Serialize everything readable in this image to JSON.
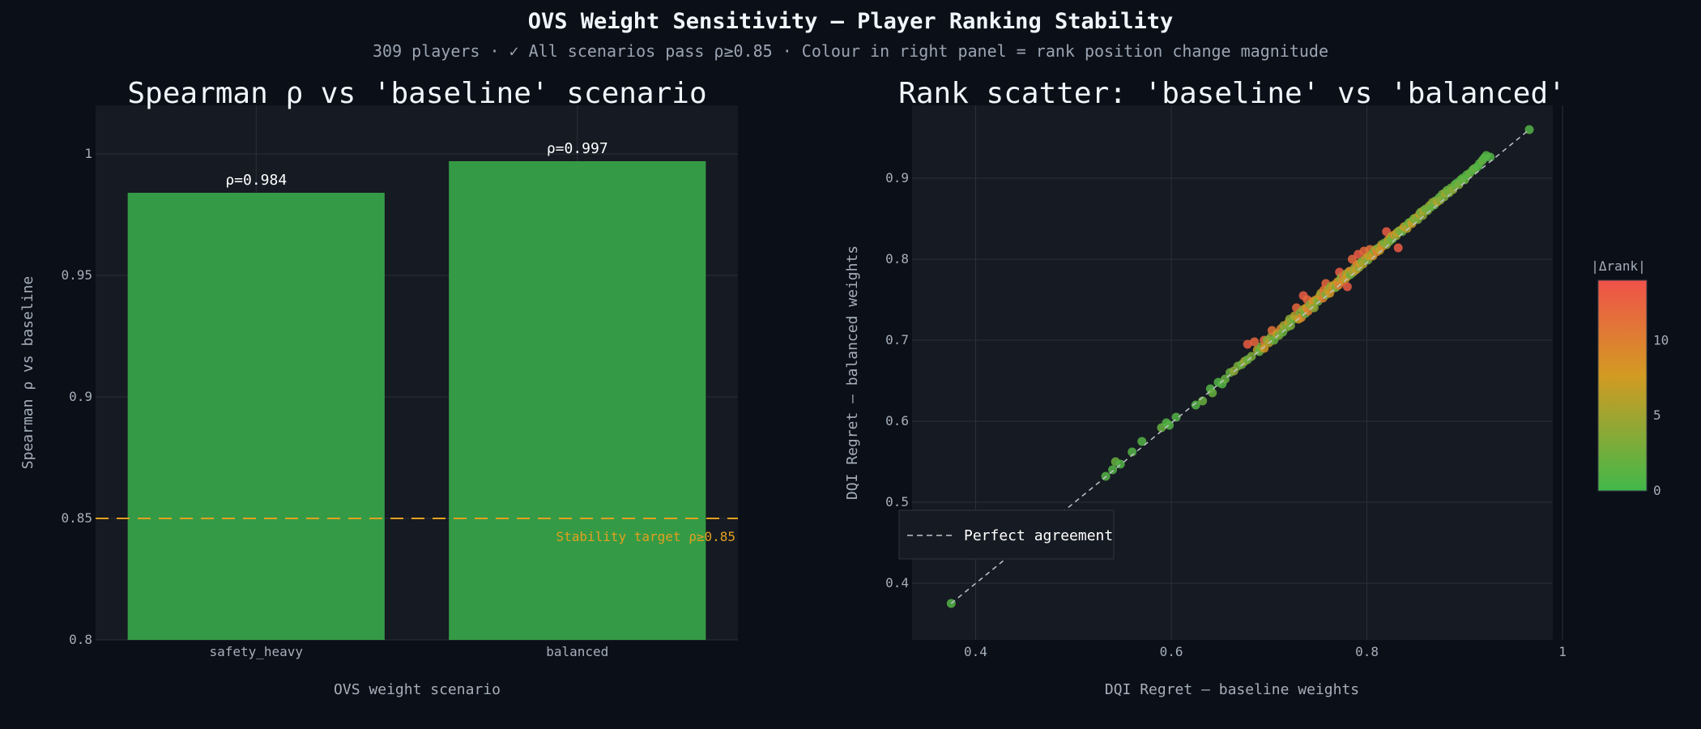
{
  "figure": {
    "title": "OVS Weight Sensitivity — Player Ranking Stability",
    "subtitle": "309 players  ·  ✓ All scenarios pass ρ≥0.85  ·  Colour in right panel = rank position change magnitude"
  },
  "colors": {
    "background": "#0b0f17",
    "panel": "#161a22",
    "bar": "#359a46",
    "target": "#e3a01e",
    "diagonal": "#c0c4ca",
    "scale_low": "#41b84a",
    "scale_mid": "#d39a22",
    "scale_high": "#f0524a"
  },
  "chart_data": [
    {
      "type": "bar",
      "title": "Spearman ρ vs 'baseline' scenario",
      "xlabel": "OVS weight scenario",
      "ylabel": "Spearman ρ vs baseline",
      "categories": [
        "safety_heavy",
        "balanced"
      ],
      "values": [
        0.984,
        0.997
      ],
      "bar_labels": [
        "ρ=0.984",
        "ρ=0.997"
      ],
      "ylim": [
        0.8,
        1.02
      ],
      "yticks": [
        0.8,
        0.85,
        0.9,
        0.95,
        1
      ],
      "ytick_labels": [
        "0.8",
        "0.85",
        "0.9",
        "0.95",
        "1"
      ],
      "threshold": {
        "value": 0.85,
        "label": "Stability target ρ≥0.85"
      },
      "grid": true
    },
    {
      "type": "scatter",
      "title": "Rank scatter: 'baseline' vs 'balanced'",
      "xlabel": "DQI Regret — baseline weights",
      "ylabel": "DQI Regret — balanced weights",
      "xlim": [
        0.335,
        0.99
      ],
      "ylim": [
        0.33,
        0.99
      ],
      "xticks": [
        0.4,
        0.6,
        0.8,
        1
      ],
      "xtick_labels": [
        "0.4",
        "0.6",
        "0.8",
        "1"
      ],
      "yticks": [
        0.4,
        0.5,
        0.6,
        0.7,
        0.8,
        0.9
      ],
      "ytick_labels": [
        "0.4",
        "0.5",
        "0.6",
        "0.7",
        "0.8",
        "0.9"
      ],
      "reference_line": {
        "label": "Perfect agreement",
        "from": [
          0.375,
          0.375
        ],
        "to": [
          0.966,
          0.96
        ]
      },
      "legend_position": "bottom-left",
      "colorbar": {
        "title": "|Δrank|",
        "range": [
          0,
          14
        ],
        "ticks": [
          0,
          5,
          10
        ],
        "tick_labels": [
          "0",
          "5",
          "10"
        ]
      },
      "grid": true,
      "points": [
        {
          "x": 0.375,
          "y": 0.375,
          "d": 1
        },
        {
          "x": 0.48,
          "y": 0.478,
          "d": 1
        },
        {
          "x": 0.533,
          "y": 0.532,
          "d": 1
        },
        {
          "x": 0.54,
          "y": 0.54,
          "d": 1
        },
        {
          "x": 0.543,
          "y": 0.55,
          "d": 2
        },
        {
          "x": 0.548,
          "y": 0.547,
          "d": 1
        },
        {
          "x": 0.56,
          "y": 0.562,
          "d": 1
        },
        {
          "x": 0.57,
          "y": 0.575,
          "d": 1
        },
        {
          "x": 0.59,
          "y": 0.592,
          "d": 2
        },
        {
          "x": 0.595,
          "y": 0.598,
          "d": 1
        },
        {
          "x": 0.598,
          "y": 0.595,
          "d": 1
        },
        {
          "x": 0.605,
          "y": 0.605,
          "d": 1
        },
        {
          "x": 0.625,
          "y": 0.62,
          "d": 1
        },
        {
          "x": 0.632,
          "y": 0.625,
          "d": 2
        },
        {
          "x": 0.64,
          "y": 0.64,
          "d": 1
        },
        {
          "x": 0.642,
          "y": 0.635,
          "d": 2
        },
        {
          "x": 0.648,
          "y": 0.648,
          "d": 1
        },
        {
          "x": 0.652,
          "y": 0.646,
          "d": 1
        },
        {
          "x": 0.655,
          "y": 0.652,
          "d": 2
        },
        {
          "x": 0.66,
          "y": 0.66,
          "d": 2
        },
        {
          "x": 0.664,
          "y": 0.662,
          "d": 4
        },
        {
          "x": 0.668,
          "y": 0.668,
          "d": 3
        },
        {
          "x": 0.672,
          "y": 0.67,
          "d": 2
        },
        {
          "x": 0.675,
          "y": 0.674,
          "d": 5
        },
        {
          "x": 0.678,
          "y": 0.676,
          "d": 2
        },
        {
          "x": 0.678,
          "y": 0.695,
          "d": 13
        },
        {
          "x": 0.682,
          "y": 0.68,
          "d": 3
        },
        {
          "x": 0.685,
          "y": 0.698,
          "d": 12
        },
        {
          "x": 0.688,
          "y": 0.688,
          "d": 6
        },
        {
          "x": 0.69,
          "y": 0.686,
          "d": 2
        },
        {
          "x": 0.692,
          "y": 0.692,
          "d": 3
        },
        {
          "x": 0.695,
          "y": 0.7,
          "d": 12
        },
        {
          "x": 0.695,
          "y": 0.69,
          "d": 8
        },
        {
          "x": 0.698,
          "y": 0.7,
          "d": 3
        },
        {
          "x": 0.7,
          "y": 0.697,
          "d": 6
        },
        {
          "x": 0.702,
          "y": 0.704,
          "d": 4
        },
        {
          "x": 0.703,
          "y": 0.712,
          "d": 11
        },
        {
          "x": 0.705,
          "y": 0.7,
          "d": 2
        },
        {
          "x": 0.708,
          "y": 0.708,
          "d": 7
        },
        {
          "x": 0.71,
          "y": 0.706,
          "d": 3
        },
        {
          "x": 0.712,
          "y": 0.714,
          "d": 9
        },
        {
          "x": 0.714,
          "y": 0.71,
          "d": 2
        },
        {
          "x": 0.715,
          "y": 0.718,
          "d": 5
        },
        {
          "x": 0.718,
          "y": 0.716,
          "d": 3
        },
        {
          "x": 0.72,
          "y": 0.722,
          "d": 8
        },
        {
          "x": 0.721,
          "y": 0.726,
          "d": 4
        },
        {
          "x": 0.722,
          "y": 0.718,
          "d": 3
        },
        {
          "x": 0.725,
          "y": 0.726,
          "d": 2
        },
        {
          "x": 0.726,
          "y": 0.73,
          "d": 6
        },
        {
          "x": 0.728,
          "y": 0.74,
          "d": 12
        },
        {
          "x": 0.73,
          "y": 0.726,
          "d": 7
        },
        {
          "x": 0.732,
          "y": 0.734,
          "d": 3
        },
        {
          "x": 0.733,
          "y": 0.728,
          "d": 9
        },
        {
          "x": 0.735,
          "y": 0.738,
          "d": 5
        },
        {
          "x": 0.735,
          "y": 0.755,
          "d": 13
        },
        {
          "x": 0.737,
          "y": 0.733,
          "d": 2
        },
        {
          "x": 0.738,
          "y": 0.74,
          "d": 8
        },
        {
          "x": 0.739,
          "y": 0.75,
          "d": 12
        },
        {
          "x": 0.74,
          "y": 0.736,
          "d": 10
        },
        {
          "x": 0.742,
          "y": 0.744,
          "d": 3
        },
        {
          "x": 0.744,
          "y": 0.742,
          "d": 6
        },
        {
          "x": 0.745,
          "y": 0.748,
          "d": 9
        },
        {
          "x": 0.746,
          "y": 0.74,
          "d": 4
        },
        {
          "x": 0.748,
          "y": 0.75,
          "d": 7
        },
        {
          "x": 0.75,
          "y": 0.748,
          "d": 3
        },
        {
          "x": 0.752,
          "y": 0.755,
          "d": 8
        },
        {
          "x": 0.753,
          "y": 0.758,
          "d": 5
        },
        {
          "x": 0.755,
          "y": 0.752,
          "d": 10
        },
        {
          "x": 0.756,
          "y": 0.762,
          "d": 11
        },
        {
          "x": 0.758,
          "y": 0.756,
          "d": 3
        },
        {
          "x": 0.758,
          "y": 0.77,
          "d": 12
        },
        {
          "x": 0.76,
          "y": 0.762,
          "d": 6
        },
        {
          "x": 0.762,
          "y": 0.758,
          "d": 8
        },
        {
          "x": 0.763,
          "y": 0.766,
          "d": 4
        },
        {
          "x": 0.765,
          "y": 0.764,
          "d": 9
        },
        {
          "x": 0.766,
          "y": 0.768,
          "d": 7
        },
        {
          "x": 0.768,
          "y": 0.765,
          "d": 3
        },
        {
          "x": 0.77,
          "y": 0.772,
          "d": 8
        },
        {
          "x": 0.771,
          "y": 0.768,
          "d": 10
        },
        {
          "x": 0.772,
          "y": 0.784,
          "d": 13
        },
        {
          "x": 0.773,
          "y": 0.775,
          "d": 5
        },
        {
          "x": 0.774,
          "y": 0.778,
          "d": 3
        },
        {
          "x": 0.775,
          "y": 0.773,
          "d": 9
        },
        {
          "x": 0.776,
          "y": 0.78,
          "d": 12
        },
        {
          "x": 0.778,
          "y": 0.776,
          "d": 6
        },
        {
          "x": 0.779,
          "y": 0.782,
          "d": 4
        },
        {
          "x": 0.78,
          "y": 0.779,
          "d": 8
        },
        {
          "x": 0.78,
          "y": 0.766,
          "d": 13
        },
        {
          "x": 0.782,
          "y": 0.785,
          "d": 7
        },
        {
          "x": 0.783,
          "y": 0.781,
          "d": 2
        },
        {
          "x": 0.785,
          "y": 0.786,
          "d": 9
        },
        {
          "x": 0.785,
          "y": 0.8,
          "d": 12
        },
        {
          "x": 0.786,
          "y": 0.784,
          "d": 5
        },
        {
          "x": 0.788,
          "y": 0.79,
          "d": 3
        },
        {
          "x": 0.789,
          "y": 0.787,
          "d": 7
        },
        {
          "x": 0.79,
          "y": 0.793,
          "d": 10
        },
        {
          "x": 0.791,
          "y": 0.806,
          "d": 13
        },
        {
          "x": 0.792,
          "y": 0.79,
          "d": 4
        },
        {
          "x": 0.793,
          "y": 0.795,
          "d": 8
        },
        {
          "x": 0.795,
          "y": 0.797,
          "d": 2
        },
        {
          "x": 0.796,
          "y": 0.794,
          "d": 6
        },
        {
          "x": 0.797,
          "y": 0.81,
          "d": 12
        },
        {
          "x": 0.798,
          "y": 0.8,
          "d": 5
        },
        {
          "x": 0.8,
          "y": 0.802,
          "d": 9
        },
        {
          "x": 0.801,
          "y": 0.799,
          "d": 3
        },
        {
          "x": 0.802,
          "y": 0.804,
          "d": 7
        },
        {
          "x": 0.803,
          "y": 0.812,
          "d": 11
        },
        {
          "x": 0.805,
          "y": 0.806,
          "d": 4
        },
        {
          "x": 0.806,
          "y": 0.804,
          "d": 8
        },
        {
          "x": 0.808,
          "y": 0.81,
          "d": 2
        },
        {
          "x": 0.809,
          "y": 0.812,
          "d": 6
        },
        {
          "x": 0.81,
          "y": 0.809,
          "d": 10
        },
        {
          "x": 0.812,
          "y": 0.814,
          "d": 3
        },
        {
          "x": 0.813,
          "y": 0.811,
          "d": 7
        },
        {
          "x": 0.815,
          "y": 0.818,
          "d": 5
        },
        {
          "x": 0.816,
          "y": 0.816,
          "d": 9
        },
        {
          "x": 0.818,
          "y": 0.82,
          "d": 2
        },
        {
          "x": 0.82,
          "y": 0.818,
          "d": 4
        },
        {
          "x": 0.82,
          "y": 0.834,
          "d": 13
        },
        {
          "x": 0.822,
          "y": 0.824,
          "d": 8
        },
        {
          "x": 0.823,
          "y": 0.822,
          "d": 3
        },
        {
          "x": 0.825,
          "y": 0.828,
          "d": 6
        },
        {
          "x": 0.826,
          "y": 0.825,
          "d": 2
        },
        {
          "x": 0.828,
          "y": 0.83,
          "d": 9
        },
        {
          "x": 0.83,
          "y": 0.829,
          "d": 4
        },
        {
          "x": 0.831,
          "y": 0.833,
          "d": 7
        },
        {
          "x": 0.832,
          "y": 0.814,
          "d": 13
        },
        {
          "x": 0.833,
          "y": 0.835,
          "d": 3
        },
        {
          "x": 0.835,
          "y": 0.836,
          "d": 5
        },
        {
          "x": 0.836,
          "y": 0.834,
          "d": 2
        },
        {
          "x": 0.838,
          "y": 0.84,
          "d": 8
        },
        {
          "x": 0.84,
          "y": 0.841,
          "d": 3
        },
        {
          "x": 0.841,
          "y": 0.838,
          "d": 6
        },
        {
          "x": 0.843,
          "y": 0.845,
          "d": 2
        },
        {
          "x": 0.845,
          "y": 0.846,
          "d": 4
        },
        {
          "x": 0.846,
          "y": 0.844,
          "d": 7
        },
        {
          "x": 0.848,
          "y": 0.85,
          "d": 2
        },
        {
          "x": 0.85,
          "y": 0.851,
          "d": 5
        },
        {
          "x": 0.852,
          "y": 0.849,
          "d": 3
        },
        {
          "x": 0.854,
          "y": 0.856,
          "d": 8
        },
        {
          "x": 0.855,
          "y": 0.858,
          "d": 2
        },
        {
          "x": 0.857,
          "y": 0.854,
          "d": 4
        },
        {
          "x": 0.858,
          "y": 0.86,
          "d": 6
        },
        {
          "x": 0.86,
          "y": 0.862,
          "d": 2
        },
        {
          "x": 0.862,
          "y": 0.86,
          "d": 3
        },
        {
          "x": 0.864,
          "y": 0.866,
          "d": 5
        },
        {
          "x": 0.865,
          "y": 0.864,
          "d": 2
        },
        {
          "x": 0.867,
          "y": 0.87,
          "d": 4
        },
        {
          "x": 0.869,
          "y": 0.867,
          "d": 2
        },
        {
          "x": 0.87,
          "y": 0.872,
          "d": 3
        },
        {
          "x": 0.872,
          "y": 0.871,
          "d": 6
        },
        {
          "x": 0.874,
          "y": 0.876,
          "d": 2
        },
        {
          "x": 0.875,
          "y": 0.873,
          "d": 4
        },
        {
          "x": 0.877,
          "y": 0.88,
          "d": 2
        },
        {
          "x": 0.879,
          "y": 0.877,
          "d": 3
        },
        {
          "x": 0.88,
          "y": 0.882,
          "d": 5
        },
        {
          "x": 0.882,
          "y": 0.885,
          "d": 2
        },
        {
          "x": 0.884,
          "y": 0.882,
          "d": 3
        },
        {
          "x": 0.886,
          "y": 0.888,
          "d": 2
        },
        {
          "x": 0.888,
          "y": 0.886,
          "d": 4
        },
        {
          "x": 0.89,
          "y": 0.892,
          "d": 2
        },
        {
          "x": 0.892,
          "y": 0.894,
          "d": 1
        },
        {
          "x": 0.894,
          "y": 0.892,
          "d": 3
        },
        {
          "x": 0.896,
          "y": 0.898,
          "d": 2
        },
        {
          "x": 0.898,
          "y": 0.9,
          "d": 1
        },
        {
          "x": 0.9,
          "y": 0.898,
          "d": 2
        },
        {
          "x": 0.902,
          "y": 0.904,
          "d": 1
        },
        {
          "x": 0.905,
          "y": 0.906,
          "d": 2
        },
        {
          "x": 0.908,
          "y": 0.91,
          "d": 1
        },
        {
          "x": 0.91,
          "y": 0.912,
          "d": 2
        },
        {
          "x": 0.913,
          "y": 0.914,
          "d": 1
        },
        {
          "x": 0.915,
          "y": 0.918,
          "d": 1
        },
        {
          "x": 0.918,
          "y": 0.922,
          "d": 2
        },
        {
          "x": 0.92,
          "y": 0.925,
          "d": 1
        },
        {
          "x": 0.922,
          "y": 0.928,
          "d": 1
        },
        {
          "x": 0.926,
          "y": 0.926,
          "d": 1
        },
        {
          "x": 0.966,
          "y": 0.96,
          "d": 1
        }
      ]
    }
  ]
}
